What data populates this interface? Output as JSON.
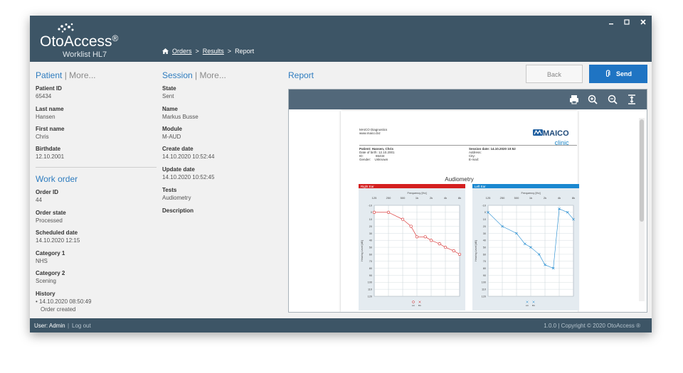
{
  "app": {
    "brand": "OtoAccess",
    "brand_mark": "®",
    "subtitle": "Worklist HL7"
  },
  "breadcrumb": [
    "Orders",
    "Results",
    "Report"
  ],
  "patient": {
    "title": "Patient",
    "more": "More...",
    "fields": [
      {
        "label": "Patient ID",
        "value": "65434"
      },
      {
        "label": "Last name",
        "value": "Hansen"
      },
      {
        "label": "First name",
        "value": "Chris"
      },
      {
        "label": "Birthdate",
        "value": "12.10.2001"
      }
    ]
  },
  "work_order": {
    "title": "Work order",
    "fields": [
      {
        "label": "Order ID",
        "value": "44"
      },
      {
        "label": "Order state",
        "value": "Processed"
      },
      {
        "label": "Scheduled date",
        "value": "14.10.2020 12:15"
      },
      {
        "label": "Category 1",
        "value": "NHS"
      },
      {
        "label": "Category 2",
        "value": "Scening"
      }
    ],
    "history_label": "History",
    "history_date": "• 14.10.2020 08:50:49",
    "history_event": "Order created"
  },
  "session": {
    "title": "Session",
    "more": "More...",
    "fields": [
      {
        "label": "State",
        "value": "Sent"
      },
      {
        "label": "Name",
        "value": "Markus Busse"
      },
      {
        "label": "Module",
        "value": "M-AUD"
      },
      {
        "label": "Create date",
        "value": "14.10.2020 10:52:44"
      },
      {
        "label": "Update date",
        "value": "14.10.2020 10:52:45"
      },
      {
        "label": "Tests",
        "value": "Audiometry"
      },
      {
        "label": "Description",
        "value": ""
      }
    ]
  },
  "report": {
    "title": "Report",
    "back_label": "Back",
    "send_label": "Send"
  },
  "document": {
    "company": "MAICO Diagnostics",
    "website": "www.maico.biz",
    "logo_main": "MAICO",
    "logo_sub": "clinic",
    "patient_line": "Patient: Hansen, Chris",
    "dob_label": "Date of birth:",
    "dob": "12.10.2001",
    "id_label": "ID:",
    "id": "65434",
    "gender_label": "Gender:",
    "gender": "Unknown",
    "session_line": "Session date: 14.10.2020 10:52",
    "address_label": "Address:",
    "city_label": "City:",
    "email_label": "E-mail:",
    "section_title": "Audiometry",
    "right_ear": "Right Ear",
    "left_ear": "Left Ear",
    "freq_label": "Frequency [Hz]",
    "hl_label": "Hearing Level [dB]",
    "freq_ticks": [
      "125",
      "250",
      "500",
      "1k",
      "2k",
      "4k",
      "8k"
    ],
    "level_ticks": [
      "-10",
      "0",
      "10",
      "20",
      "30",
      "40",
      "50",
      "60",
      "70",
      "80",
      "90",
      "100",
      "110",
      "120"
    ],
    "legend_ac": "AC",
    "legend_bc": "BC"
  },
  "chart_data": [
    {
      "type": "line",
      "title": "Right Ear",
      "xlabel": "Frequency [Hz]",
      "ylabel": "Hearing Level [dB]",
      "x": [
        125,
        250,
        500,
        750,
        1000,
        1500,
        2000,
        3000,
        4000,
        6000,
        8000
      ],
      "ylim": [
        -10,
        120
      ],
      "y_inverted": true,
      "series": [
        {
          "name": "AC",
          "values": [
            0,
            0,
            10,
            20,
            35,
            35,
            40,
            45,
            50,
            55,
            60
          ]
        }
      ],
      "color": "#d42020"
    },
    {
      "type": "line",
      "title": "Left Ear",
      "xlabel": "Frequency [Hz]",
      "ylabel": "Hearing Level [dB]",
      "x": [
        125,
        250,
        500,
        750,
        1000,
        1500,
        2000,
        3000,
        4000,
        6000,
        8000
      ],
      "ylim": [
        -10,
        120
      ],
      "y_inverted": true,
      "series": [
        {
          "name": "AC",
          "values": [
            0,
            20,
            30,
            45,
            50,
            60,
            75,
            80,
            -5,
            0,
            10
          ]
        }
      ],
      "color": "#1a88d0"
    }
  ],
  "status": {
    "user": "User: Admin",
    "logout": "Log out",
    "version": "1.0.0",
    "copyright": "Copyright © 2020 OtoAccess ®"
  }
}
